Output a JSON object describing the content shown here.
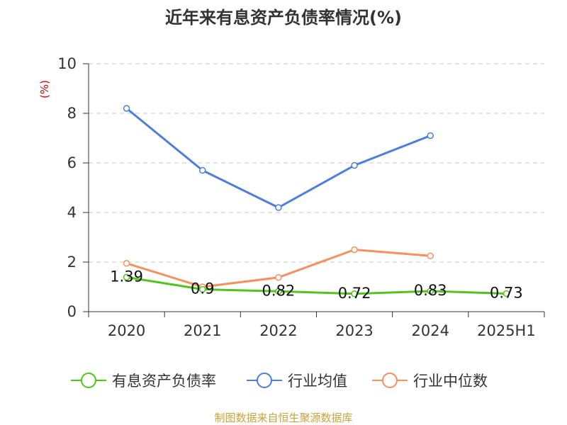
{
  "chart_data": {
    "type": "line",
    "title": "近年来有息资产负债率情况(%)",
    "ylabel": "(%)",
    "categories": [
      "2020",
      "2021",
      "2022",
      "2023",
      "2024",
      "2025H1"
    ],
    "ylim": [
      0,
      10
    ],
    "yticks": [
      0,
      2,
      4,
      6,
      8,
      10
    ],
    "grid": true,
    "legend_position": "bottom",
    "series": [
      {
        "name": "有息资产负债率",
        "color": "#52c41a",
        "values": [
          1.39,
          0.9,
          0.82,
          0.72,
          0.83,
          0.73
        ],
        "show_labels": true
      },
      {
        "name": "行业均值",
        "color": "#4a7fdd",
        "values": [
          8.2,
          5.7,
          4.2,
          5.9,
          7.1,
          null
        ],
        "show_labels": false
      },
      {
        "name": "行业中位数",
        "color": "#f7905c",
        "values": [
          1.95,
          1.0,
          1.38,
          2.5,
          2.25,
          null
        ],
        "show_labels": false
      }
    ]
  },
  "footer": "制图数据来自恒生聚源数据库"
}
